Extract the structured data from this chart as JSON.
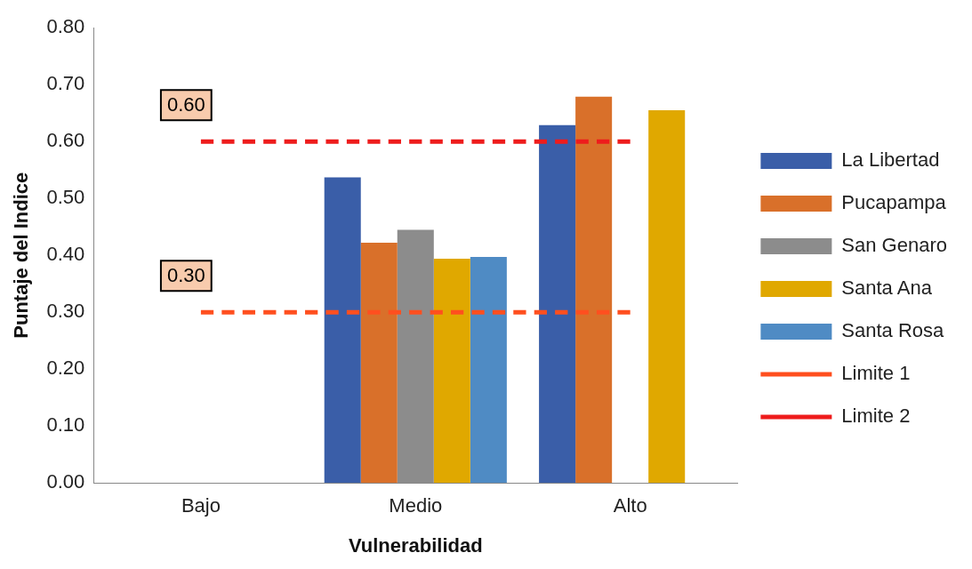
{
  "chart_data": {
    "type": "bar",
    "xlabel": "Vulnerabilidad",
    "ylabel": "Puntaje del Indice",
    "categories": [
      "Bajo",
      "Medio",
      "Alto"
    ],
    "series": [
      {
        "name": "La Libertad",
        "color": "#3a5ea8",
        "values": [
          null,
          0.537,
          0.629
        ]
      },
      {
        "name": "Pucapampa",
        "color": "#d9702a",
        "values": [
          null,
          0.422,
          0.679
        ]
      },
      {
        "name": "San Genaro",
        "color": "#8c8c8c",
        "values": [
          null,
          0.445,
          null
        ]
      },
      {
        "name": "Santa Ana",
        "color": "#e0a800",
        "values": [
          null,
          0.394,
          0.655
        ]
      },
      {
        "name": "Santa Rosa",
        "color": "#4f8bc4",
        "values": [
          null,
          0.397,
          null
        ]
      },
      {
        "name": "Limite 1",
        "type": "line",
        "color": "#ff4f1f",
        "line_style": "dashed",
        "marker": "none",
        "values": [
          0.3,
          0.3,
          0.3
        ],
        "value_labels": [
          "0.30",
          null,
          null
        ]
      },
      {
        "name": "Limite 2",
        "type": "line",
        "color": "#ee1c1c",
        "line_style": "dashed",
        "marker": "none",
        "values": [
          0.6,
          0.6,
          0.6
        ],
        "value_labels": [
          "0.60",
          null,
          null
        ]
      }
    ],
    "ylim": [
      0,
      0.8
    ],
    "yticks": [
      {
        "value": 0,
        "label": "0.00"
      },
      {
        "value": 0.1,
        "label": "0.10"
      },
      {
        "value": 0.2,
        "label": "0.20"
      },
      {
        "value": 0.3,
        "label": "0.30"
      },
      {
        "value": 0.4,
        "label": "0.40"
      },
      {
        "value": 0.5,
        "label": "0.50"
      },
      {
        "value": 0.6,
        "label": "0.60"
      },
      {
        "value": 0.7,
        "label": "0.70"
      },
      {
        "value": 0.8,
        "label": "0.80"
      }
    ],
    "grid": false,
    "legend": "right"
  }
}
